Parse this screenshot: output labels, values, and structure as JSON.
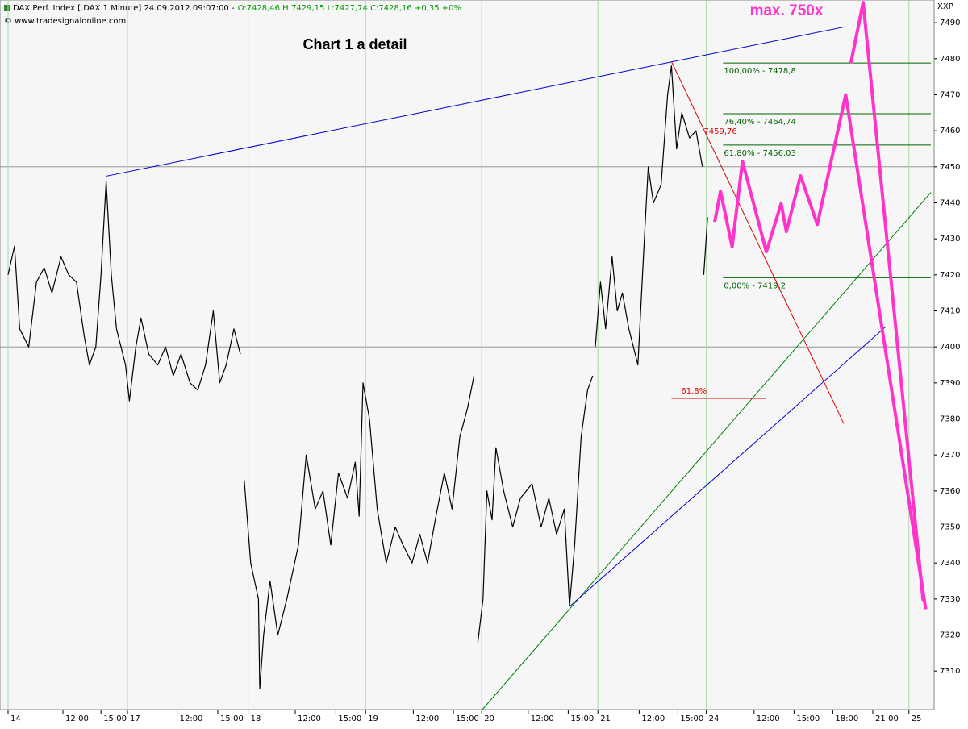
{
  "header": {
    "instrument": "DAX Perf. Index [.DAX  1 Minute] 24.09.2012 09:07:00 -",
    "ohlc": "O:7428,46 H:7429,15 L:7427,74 C:7428,16 +0,35 +0%",
    "copyright": "© www.tradesignalonline.com",
    "symbol": "XXP"
  },
  "chart_data": {
    "type": "line",
    "title": "Chart 1 a detail",
    "annotation": "max. 750x",
    "xlim": [
      0,
      71.5
    ],
    "ylim": [
      7299.3,
      7496.3
    ],
    "grid": true,
    "xticks": [
      {
        "value": 0,
        "label": "14"
      },
      {
        "value": 4.25,
        "label": "12:00"
      },
      {
        "value": 7.2,
        "label": "15:00"
      },
      {
        "value": 9.25,
        "label": "17"
      },
      {
        "value": 13.1,
        "label": "12:00"
      },
      {
        "value": 16.25,
        "label": "15:00"
      },
      {
        "value": 18.6,
        "label": "18"
      },
      {
        "value": 22.25,
        "label": "12:00"
      },
      {
        "value": 25.4,
        "label": "15:00"
      },
      {
        "value": 27.7,
        "label": "19"
      },
      {
        "value": 31.4,
        "label": "12:00"
      },
      {
        "value": 34.5,
        "label": "15:00"
      },
      {
        "value": 36.7,
        "label": "20"
      },
      {
        "value": 40.3,
        "label": "12:00"
      },
      {
        "value": 43.4,
        "label": "15:00"
      },
      {
        "value": 45.7,
        "label": "21"
      },
      {
        "value": 48.9,
        "label": "12:00"
      },
      {
        "value": 51.9,
        "label": "15:00"
      },
      {
        "value": 54.1,
        "label": "24"
      },
      {
        "value": 57.8,
        "label": "12:00"
      },
      {
        "value": 60.9,
        "label": "15:00"
      },
      {
        "value": 63.9,
        "label": "18:00"
      },
      {
        "value": 67,
        "label": "21:00"
      },
      {
        "value": 69.8,
        "label": "25"
      }
    ],
    "yticks": [
      7310,
      7320,
      7330,
      7340,
      7350,
      7360,
      7370,
      7380,
      7390,
      7400,
      7410,
      7420,
      7430,
      7440,
      7450,
      7460,
      7470,
      7480,
      7490
    ],
    "series": [
      {
        "color": "#000000",
        "width": 1.2,
        "x": [
          0,
          0.5,
          0.9,
          1.6,
          2.2,
          2.8,
          3.4,
          4.1,
          4.7,
          5.3,
          5.9,
          6.3,
          6.8,
          7.2,
          7.6,
          8,
          8.4,
          9.1,
          9.4,
          9.9,
          10.3,
          10.9,
          11.6,
          12.2,
          12.8,
          13.4,
          14.1,
          14.7,
          15.3,
          15.9,
          16.4,
          16.9,
          17.5,
          18,
          18.2,
          18.3,
          18.8,
          19.4,
          19.5,
          19.8,
          20.3,
          20.9,
          21.6,
          22.5,
          23.1,
          23.8,
          24.4,
          25,
          25.6,
          26.3,
          26.9,
          27.2,
          27.5,
          28,
          28.6,
          29.3,
          30,
          30.6,
          31.3,
          31.9,
          32.5,
          33.1,
          33.8,
          34.4,
          35,
          35.6,
          36.1,
          36.3,
          36.4,
          36.8,
          37.1,
          37.5,
          37.8,
          38.4,
          39.1,
          39.7,
          40.6,
          41.3,
          41.9,
          42.5,
          43.1,
          43.5,
          43.9,
          44.4,
          44.9,
          45.3,
          45.4,
          45.5,
          45.9,
          46.3,
          46.8,
          47.2,
          47.6,
          48.1,
          48.8,
          49.3,
          49.6,
          50,
          50.6,
          51.1,
          51.4,
          51.8,
          52.2,
          52.8,
          53.3,
          53.8,
          53.85,
          53.9,
          54.2
        ],
        "values": [
          7420,
          7428,
          7405,
          7400,
          7418,
          7422,
          7415,
          7425,
          7420,
          7418,
          7403,
          7395,
          7400,
          7420,
          7446,
          7420,
          7405,
          7395,
          7385,
          7400,
          7408,
          7398,
          7395,
          7400,
          7392,
          7398,
          7390,
          7388,
          7395,
          7410,
          7390,
          7395,
          7405,
          7398,
          null,
          7363,
          7340,
          7330,
          7305,
          7320,
          7335,
          7320,
          7330,
          7345,
          7370,
          7355,
          7360,
          7345,
          7365,
          7358,
          7368,
          7353,
          7390,
          7380,
          7355,
          7340,
          7350,
          7345,
          7340,
          7348,
          7340,
          7352,
          7365,
          7355,
          7375,
          7383,
          7392,
          null,
          7318,
          7330,
          7360,
          7352,
          7372,
          7360,
          7350,
          7358,
          7362,
          7350,
          7358,
          7348,
          7355,
          7328,
          7345,
          7375,
          7388,
          7392,
          null,
          7400,
          7418,
          7405,
          7425,
          7410,
          7415,
          7405,
          7395,
          7430,
          7450,
          7440,
          7445,
          7470,
          7478,
          7455,
          7465,
          7458,
          7460,
          7450,
          null,
          7420,
          7436
        ]
      },
      {
        "color": "#ff33cc",
        "width": 4,
        "x": [
          54.75,
          55.2,
          56.1,
          56.9,
          58.75,
          59.9,
          60.3,
          61.4,
          62.7,
          64.9,
          71.1
        ],
        "values": [
          7434.7,
          7443.2,
          7427.8,
          7451.5,
          7426.4,
          7439.8,
          7432,
          7447.5,
          7434,
          7470,
          7327.2
        ]
      },
      {
        "color": "#ff33cc",
        "width": 4,
        "x": [
          65.3,
          66.25,
          70.9
        ],
        "values": [
          7478.8,
          7495.6,
          7329.5
        ]
      }
    ],
    "trendlines": [
      {
        "color": "#0000cc",
        "x": [
          7.6,
          64.9
        ],
        "values": [
          7447.4,
          7488.9
        ]
      },
      {
        "color": "#dd0000",
        "x": [
          51.4,
          64.75
        ],
        "values": [
          7479.2,
          7378.7
        ]
      },
      {
        "color": "#008000",
        "x": [
          36.75,
          71.5
        ],
        "values": [
          7299.3,
          7442.9
        ]
      },
      {
        "color": "#0000cc",
        "x": [
          43.5,
          68
        ],
        "values": [
          7327.9,
          7405.6
        ]
      }
    ],
    "levels": [
      {
        "value": 7478.8,
        "label": "100,00% - 7478,8"
      },
      {
        "value": 7464.74,
        "label": "76,40% - 7464,74"
      },
      {
        "value": 7456.03,
        "label": "61,80% - 7456,03"
      },
      {
        "value": 7419.2,
        "label": "0,00% - 7419,2"
      }
    ],
    "levels_x": [
      55.4,
      71.5
    ],
    "price_label": {
      "x": 53.9,
      "value": 7459.76,
      "label": "7459,76"
    },
    "marker": {
      "label": "61.8%",
      "x": [
        51.4,
        58.75
      ],
      "values": [
        7385.7,
        7385.7
      ]
    }
  }
}
